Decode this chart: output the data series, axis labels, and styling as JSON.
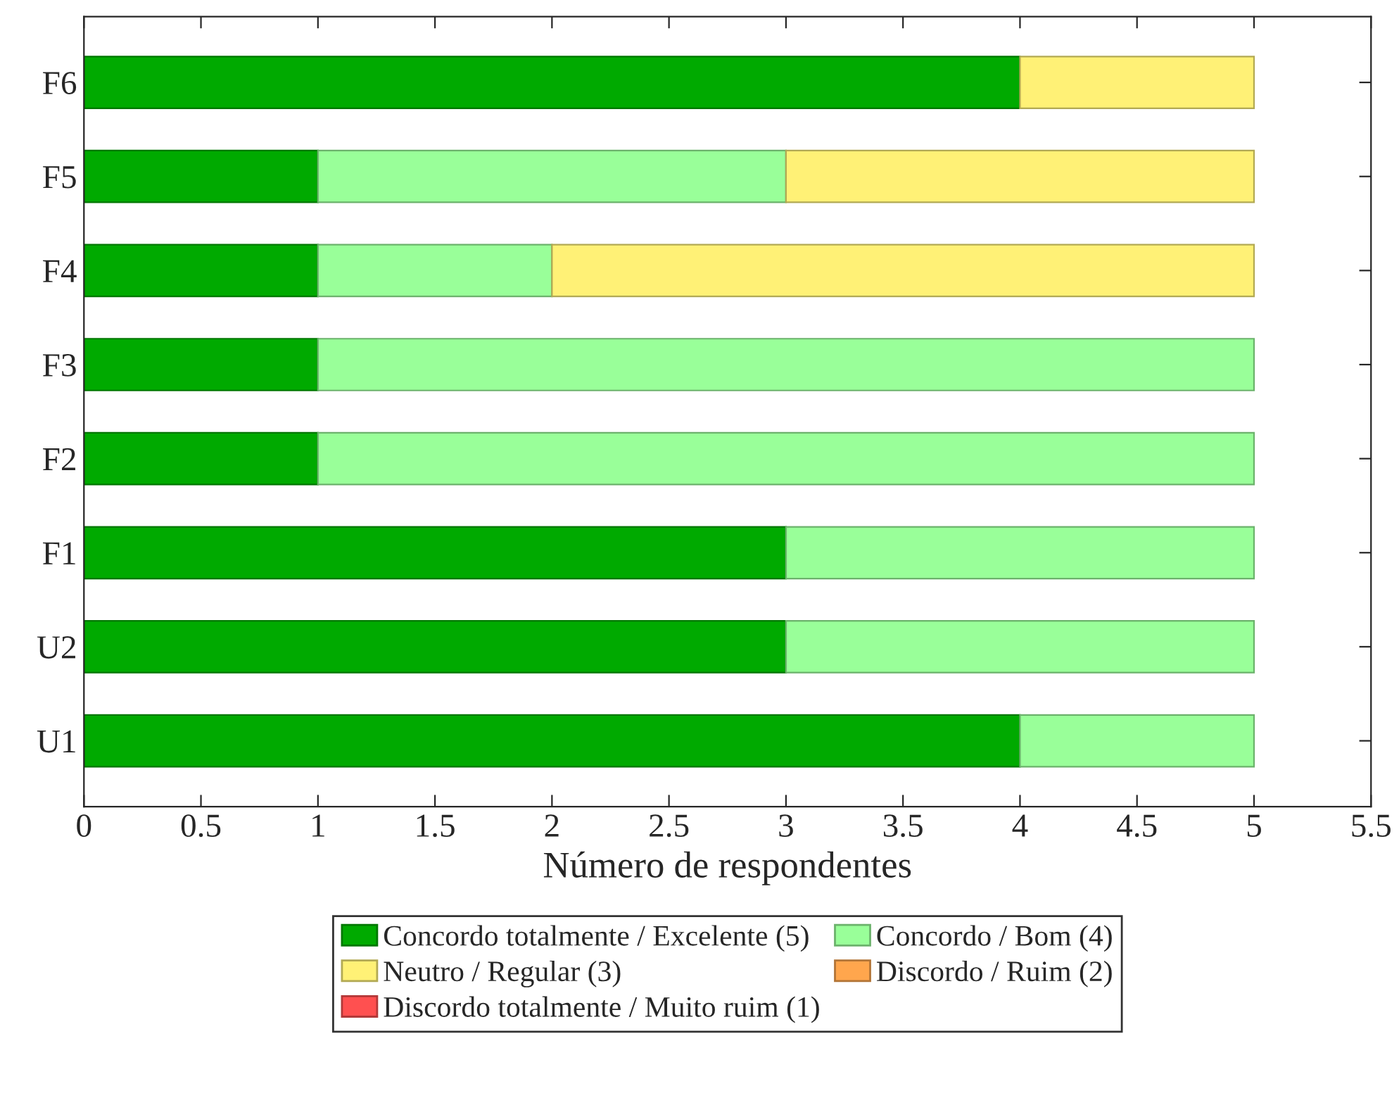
{
  "chart_data": {
    "type": "bar",
    "orientation": "horizontal",
    "stacked": true,
    "categories": [
      "F6",
      "F5",
      "F4",
      "F3",
      "F2",
      "F1",
      "U2",
      "U1"
    ],
    "series": [
      {
        "name": "Concordo totalmente / Excelente (5)",
        "color": "#00aa00",
        "values": [
          4,
          1,
          1,
          1,
          1,
          3,
          3,
          4
        ]
      },
      {
        "name": "Concordo / Bom (4)",
        "color": "#99ff99",
        "values": [
          0,
          2,
          1,
          4,
          4,
          2,
          2,
          1
        ]
      },
      {
        "name": "Neutro / Regular (3)",
        "color": "#fff176",
        "values": [
          1,
          2,
          3,
          0,
          0,
          0,
          0,
          0
        ]
      },
      {
        "name": "Discordo / Ruim (2)",
        "color": "#ffa64d",
        "values": [
          0,
          0,
          0,
          0,
          0,
          0,
          0,
          0
        ]
      },
      {
        "name": "Discordo totalmente / Muito ruim (1)",
        "color": "#ff5050",
        "values": [
          0,
          0,
          0,
          0,
          0,
          0,
          0,
          0
        ]
      }
    ],
    "xlabel": "Número de respondentes",
    "xlim": [
      0,
      5.5
    ],
    "xticks": [
      0,
      0.5,
      1,
      1.5,
      2,
      2.5,
      3,
      3.5,
      4,
      4.5,
      5,
      5.5
    ],
    "grid": false,
    "legend": "bottom"
  }
}
